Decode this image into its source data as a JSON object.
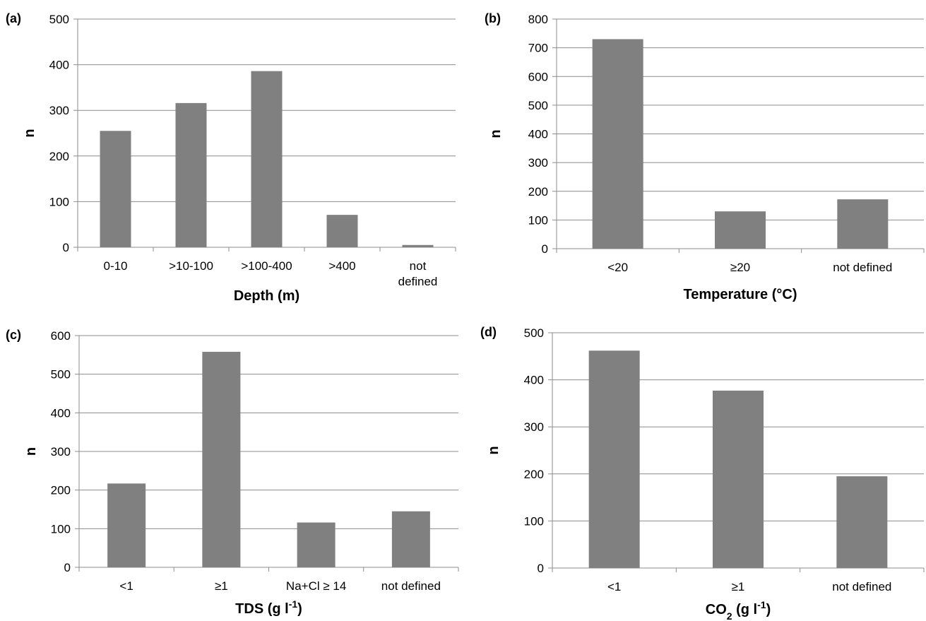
{
  "chart_data": [
    {
      "type": "bar",
      "panel_label": "(a)",
      "categories": [
        [
          "0-10"
        ],
        [
          ">10-100"
        ],
        [
          ">100-400"
        ],
        [
          ">400"
        ],
        [
          "not",
          "defined"
        ]
      ],
      "values": [
        255,
        316,
        386,
        71,
        5
      ],
      "xlabel": "Depth (m)",
      "xlabel_sup": "",
      "ylabel": "n",
      "ylim": [
        0,
        500
      ],
      "yticks": [
        "0",
        "100",
        "200",
        "300",
        "400",
        "500"
      ],
      "grid": true,
      "bar_color": "#808080"
    },
    {
      "type": "bar",
      "panel_label": "(b)",
      "categories": [
        [
          "<20"
        ],
        [
          "≥20"
        ],
        [
          "not defined"
        ]
      ],
      "values": [
        730,
        130,
        172
      ],
      "xlabel": "Temperature (°C)",
      "xlabel_sup": "",
      "ylabel": "n",
      "ylim": [
        0,
        800
      ],
      "yticks": [
        "0",
        "100",
        "200",
        "300",
        "400",
        "500",
        "600",
        "700",
        "800"
      ],
      "grid": true,
      "bar_color": "#808080"
    },
    {
      "type": "bar",
      "panel_label": "(c)",
      "categories": [
        [
          "<1"
        ],
        [
          "≥1"
        ],
        [
          "Na+Cl ≥ 14"
        ],
        [
          "not defined"
        ]
      ],
      "values": [
        217,
        558,
        116,
        145
      ],
      "xlabel": "TDS (g l",
      "xlabel_sup": "-1",
      "xlabel_end": ")",
      "ylabel": "n",
      "ylim": [
        0,
        600
      ],
      "yticks": [
        "0",
        "100",
        "200",
        "300",
        "400",
        "500",
        "600"
      ],
      "grid": true,
      "bar_color": "#808080"
    },
    {
      "type": "bar",
      "panel_label": "(d)",
      "categories": [
        [
          "<1"
        ],
        [
          "≥1"
        ],
        [
          "not defined"
        ]
      ],
      "values": [
        462,
        377,
        195
      ],
      "xlabel": "CO",
      "xlabel_sub": "2",
      "xlabel_mid": " (g l",
      "xlabel_sup": "-1",
      "xlabel_end": ")",
      "ylabel": "n",
      "ylim": [
        0,
        500
      ],
      "yticks": [
        "0",
        "100",
        "200",
        "300",
        "400",
        "500"
      ],
      "grid": true,
      "bar_color": "#808080"
    }
  ]
}
